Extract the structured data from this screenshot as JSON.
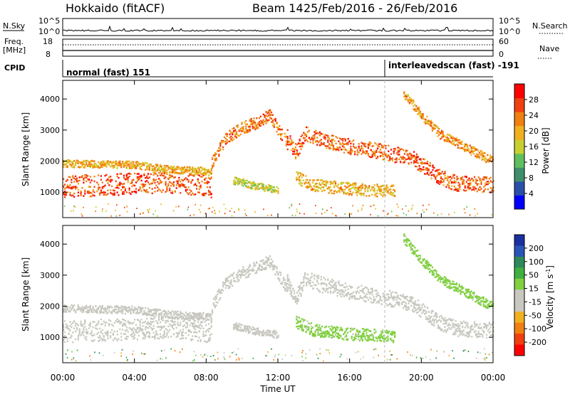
{
  "header": {
    "station": "Hokkaido (fitACF)",
    "beam": "Beam 14",
    "dates": "25/Feb/2016 - 26/Feb/2016"
  },
  "side_labels": {
    "nsky": "N.Sky",
    "freq": "Freq.",
    "mhz": "[MHz]",
    "cpid": "CPID",
    "nsearch": "N.Search",
    "nave": "Nave"
  },
  "aux_ticks": {
    "nsky_left": [
      "10^5",
      "10^0"
    ],
    "nsearch_right": [
      "10^5",
      "10^0"
    ],
    "freq_left": [
      "18",
      "8"
    ],
    "nave_right": [
      "60",
      "0"
    ]
  },
  "cpid": {
    "mode1": "normal (fast) 151",
    "mode2": "interleavedscan (fast) -191"
  },
  "colorbars": {
    "power": {
      "label": "Power [dB]",
      "ticks": [
        "4",
        "8",
        "12",
        "16",
        "20",
        "24",
        "28"
      ],
      "colors": [
        "#0000ff",
        "#2a4fa8",
        "#3f8f6a",
        "#5fbf5f",
        "#c8d030",
        "#f0b020",
        "#f08010",
        "#f04010",
        "#ff0000"
      ]
    },
    "velocity": {
      "label": "Velocity [m s",
      "label_sup": "-1",
      "label_end": "]",
      "ticks": [
        "200",
        "100",
        "50",
        "15",
        "-15",
        "-50",
        "-100",
        "-200"
      ],
      "colors": [
        "#1a2fa0",
        "#2a55b8",
        "#2f8a5a",
        "#3fb040",
        "#80d040",
        "#c8c8c0",
        "#c8c8c0",
        "#f0b020",
        "#f08010",
        "#f04010",
        "#ff0000"
      ]
    }
  },
  "chart_data": [
    {
      "type": "heatmap",
      "name": "power",
      "ylabel": "Slant Range [km]",
      "xlabel": "",
      "x_ticks": [
        "00:00",
        "04:00",
        "08:00",
        "12:00",
        "16:00",
        "20:00",
        "00:00"
      ],
      "y_ticks": [
        1000,
        2000,
        3000,
        4000
      ],
      "xlim_hours": [
        0,
        24
      ],
      "ylim_km": [
        180,
        4600
      ],
      "scale": "Power [dB]",
      "scatter_bands": [
        {
          "x": [
            0,
            2,
            4,
            6,
            7.5,
            8.3
          ],
          "y": [
            1200,
            1250,
            1300,
            1350,
            1250,
            1200
          ],
          "w": 350,
          "value": 26,
          "fade": 2
        },
        {
          "x": [
            0,
            2,
            4,
            6,
            8,
            8.3
          ],
          "y": [
            1950,
            1920,
            1900,
            1750,
            1700,
            1650
          ],
          "w": 120,
          "value": 20,
          "fade": 3
        },
        {
          "x": [
            8.3,
            9,
            10,
            11,
            11.5,
            12.5
          ],
          "y": [
            2000,
            2700,
            3100,
            3300,
            3500,
            2600
          ],
          "w": 200,
          "value": 24,
          "fade": 3
        },
        {
          "x": [
            12.5,
            13,
            13.5,
            14.5,
            16,
            18,
            19.5,
            21,
            22,
            24
          ],
          "y": [
            2800,
            2300,
            2900,
            2700,
            2500,
            2300,
            2100,
            1500,
            1300,
            1250
          ],
          "w": 250,
          "value": 25,
          "fade": 3
        },
        {
          "x": [
            13,
            14,
            15.5,
            17,
            18.5
          ],
          "y": [
            1500,
            1250,
            1150,
            1100,
            1050
          ],
          "w": 200,
          "value": 20,
          "fade": 4
        },
        {
          "x": [
            9.5,
            10.5,
            11.5,
            12
          ],
          "y": [
            1400,
            1250,
            1150,
            1100
          ],
          "w": 120,
          "value": 16,
          "fade": 4
        },
        {
          "x": [
            19,
            20,
            21,
            22,
            24
          ],
          "y": [
            4200,
            3500,
            2900,
            2600,
            2000
          ],
          "w": 150,
          "value": 22,
          "fade": 3
        }
      ]
    },
    {
      "type": "heatmap",
      "name": "velocity",
      "ylabel": "Slant Range [km]",
      "xlabel": "Time UT",
      "x_ticks": [
        "00:00",
        "04:00",
        "08:00",
        "12:00",
        "16:00",
        "20:00",
        "00:00"
      ],
      "y_ticks": [
        1000,
        2000,
        3000,
        4000
      ],
      "xlim_hours": [
        0,
        24
      ],
      "ylim_km": [
        180,
        4600
      ],
      "scale": "Velocity [m s-1]",
      "scatter_bands": [
        {
          "x": [
            0,
            2,
            4,
            6,
            7.5,
            8.3
          ],
          "y": [
            1200,
            1250,
            1300,
            1350,
            1250,
            1200
          ],
          "w": 350,
          "value": 0,
          "fade": 2
        },
        {
          "x": [
            0,
            2,
            4,
            6,
            8,
            8.3
          ],
          "y": [
            1950,
            1920,
            1900,
            1750,
            1700,
            1650
          ],
          "w": 120,
          "value": 0,
          "fade": 3
        },
        {
          "x": [
            8.3,
            9,
            10,
            11,
            11.5,
            12.5
          ],
          "y": [
            2000,
            2700,
            3100,
            3300,
            3500,
            2600
          ],
          "w": 200,
          "value": 0,
          "fade": 3
        },
        {
          "x": [
            12.5,
            13,
            13.5,
            14.5,
            16,
            18,
            19.5,
            21,
            22,
            24
          ],
          "y": [
            2800,
            2300,
            2900,
            2700,
            2500,
            2300,
            2100,
            1500,
            1300,
            1250
          ],
          "w": 250,
          "value": 0,
          "fade": 3
        },
        {
          "x": [
            13,
            14,
            15.5,
            17,
            18.5
          ],
          "y": [
            1500,
            1250,
            1150,
            1100,
            1050
          ],
          "w": 200,
          "value": 40,
          "fade": 4
        },
        {
          "x": [
            9.5,
            10.5,
            11.5,
            12
          ],
          "y": [
            1400,
            1250,
            1150,
            1100
          ],
          "w": 120,
          "value": 0,
          "fade": 4
        },
        {
          "x": [
            19,
            20,
            21,
            22,
            24
          ],
          "y": [
            4200,
            3500,
            2900,
            2600,
            2000
          ],
          "w": 150,
          "value": 40,
          "fade": 3
        }
      ]
    }
  ]
}
